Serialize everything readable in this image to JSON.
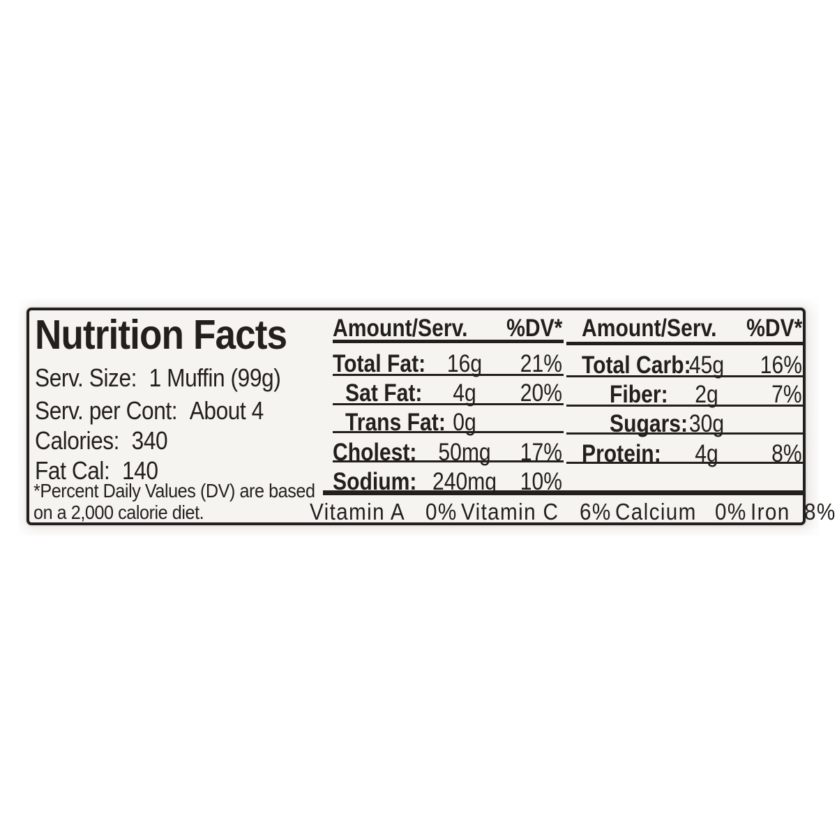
{
  "label": {
    "title": "Nutrition Facts",
    "serving_info": [
      {
        "label": "Serv. Size:",
        "value": "1 Muffin (99g)"
      },
      {
        "label": "Serv. per Cont:",
        "value": "About 4"
      },
      {
        "label": "Calories:",
        "value": "340"
      },
      {
        "label": "Fat Cal:",
        "value": "140"
      }
    ],
    "footnote_line1": "*Percent Daily Values (DV) are based",
    "footnote_line2": "on a 2,000 calorie diet.",
    "columns": [
      {
        "header": {
          "amount": "Amount/Serv.",
          "dv": "%DV*"
        },
        "rows": [
          {
            "label": "Total Fat:",
            "value": "16g",
            "dv": "21%"
          },
          {
            "label": "Sat Fat:",
            "value": "4g",
            "dv": "20%"
          },
          {
            "label": "Trans Fat:",
            "value": "0g",
            "dv": ""
          },
          {
            "label": "Cholest:",
            "value": "50mg",
            "dv": "17%"
          },
          {
            "label": "Sodium:",
            "value": "240mg",
            "dv": "10%"
          }
        ]
      },
      {
        "header": {
          "amount": "Amount/Serv.",
          "dv": "%DV*"
        },
        "rows": [
          {
            "label": "Total Carb:",
            "value": "45g",
            "dv": "16%"
          },
          {
            "label": "Fiber:",
            "value": "2g",
            "dv": "7%"
          },
          {
            "label": "Sugars:",
            "value": "30g",
            "dv": ""
          },
          {
            "label": "Protein:",
            "value": "4g",
            "dv": "8%"
          }
        ]
      }
    ],
    "micronutrients": [
      {
        "name": "Vitamin A",
        "value": "0%"
      },
      {
        "name": "Vitamin C",
        "value": "6%"
      },
      {
        "name": "Calcium",
        "value": "0%"
      },
      {
        "name": "Iron",
        "value": "8%"
      }
    ]
  },
  "colors": {
    "ink": "#221f1c",
    "label_background": "#f5f4f1",
    "photo_background": "#e9e7e4",
    "page_background": "#ffffff"
  }
}
